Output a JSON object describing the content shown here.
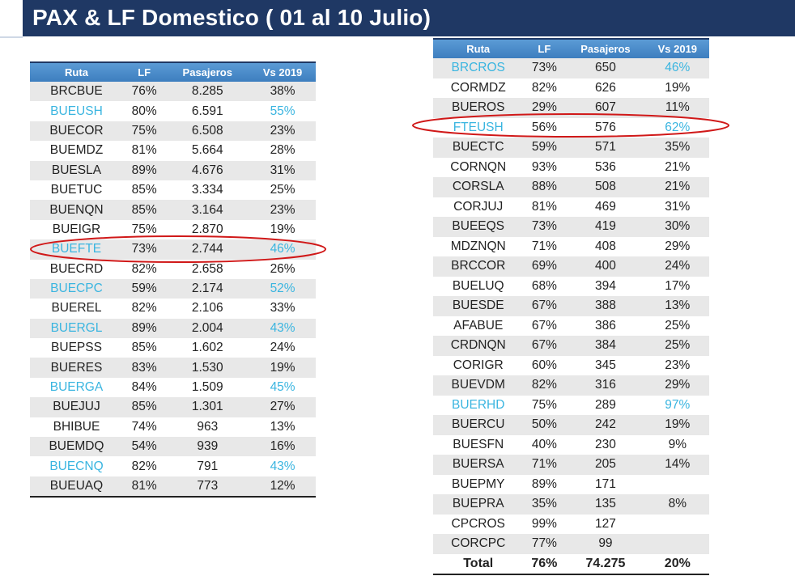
{
  "title": "PAX & LF  Domestico ( 01 al 10 Julio)",
  "colors": {
    "header": "#1f3864",
    "table_header": "#4a8cc9",
    "highlight_text": "#3ab5e0",
    "circle": "#d01818"
  },
  "columns": [
    "Ruta",
    "LF",
    "Pasajeros",
    "Vs 2019"
  ],
  "left_table": [
    [
      "BRCBUE",
      "76%",
      "8.285",
      "38%",
      false
    ],
    [
      "BUEUSH",
      "80%",
      "6.591",
      "55%",
      true
    ],
    [
      "BUECOR",
      "75%",
      "6.508",
      "23%",
      false
    ],
    [
      "BUEMDZ",
      "81%",
      "5.664",
      "28%",
      false
    ],
    [
      "BUESLA",
      "89%",
      "4.676",
      "31%",
      false
    ],
    [
      "BUETUC",
      "85%",
      "3.334",
      "25%",
      false
    ],
    [
      "BUENQN",
      "85%",
      "3.164",
      "23%",
      false
    ],
    [
      "BUEIGR",
      "75%",
      "2.870",
      "19%",
      false
    ],
    [
      "BUEFTE",
      "73%",
      "2.744",
      "46%",
      true
    ],
    [
      "BUECRD",
      "82%",
      "2.658",
      "26%",
      false
    ],
    [
      "BUECPC",
      "59%",
      "2.174",
      "52%",
      true
    ],
    [
      "BUEREL",
      "82%",
      "2.106",
      "33%",
      false
    ],
    [
      "BUERGL",
      "89%",
      "2.004",
      "43%",
      true
    ],
    [
      "BUEPSS",
      "85%",
      "1.602",
      "24%",
      false
    ],
    [
      "BUERES",
      "83%",
      "1.530",
      "19%",
      false
    ],
    [
      "BUERGA",
      "84%",
      "1.509",
      "45%",
      true
    ],
    [
      "BUEJUJ",
      "85%",
      "1.301",
      "27%",
      false
    ],
    [
      "BHIBUE",
      "74%",
      "963",
      "13%",
      false
    ],
    [
      "BUEMDQ",
      "54%",
      "939",
      "16%",
      false
    ],
    [
      "BUECNQ",
      "82%",
      "791",
      "43%",
      true
    ],
    [
      "BUEUAQ",
      "81%",
      "773",
      "12%",
      false
    ]
  ],
  "right_table": [
    [
      "BRCROS",
      "73%",
      "650",
      "46%",
      true
    ],
    [
      "CORMDZ",
      "82%",
      "626",
      "19%",
      false
    ],
    [
      "BUEROS",
      "29%",
      "607",
      "11%",
      false
    ],
    [
      "FTEUSH",
      "56%",
      "576",
      "62%",
      true
    ],
    [
      "BUECTC",
      "59%",
      "571",
      "35%",
      false
    ],
    [
      "CORNQN",
      "93%",
      "536",
      "21%",
      false
    ],
    [
      "CORSLA",
      "88%",
      "508",
      "21%",
      false
    ],
    [
      "CORJUJ",
      "81%",
      "469",
      "31%",
      false
    ],
    [
      "BUEEQS",
      "73%",
      "419",
      "30%",
      false
    ],
    [
      "MDZNQN",
      "71%",
      "408",
      "29%",
      false
    ],
    [
      "BRCCOR",
      "69%",
      "400",
      "24%",
      false
    ],
    [
      "BUELUQ",
      "68%",
      "394",
      "17%",
      false
    ],
    [
      "BUESDE",
      "67%",
      "388",
      "13%",
      false
    ],
    [
      "AFABUE",
      "67%",
      "386",
      "25%",
      false
    ],
    [
      "CRDNQN",
      "67%",
      "384",
      "25%",
      false
    ],
    [
      "CORIGR",
      "60%",
      "345",
      "23%",
      false
    ],
    [
      "BUEVDM",
      "82%",
      "316",
      "29%",
      false
    ],
    [
      "BUERHD",
      "75%",
      "289",
      "97%",
      true
    ],
    [
      "BUERCU",
      "50%",
      "242",
      "19%",
      false
    ],
    [
      "BUESFN",
      "40%",
      "230",
      "9%",
      false
    ],
    [
      "BUERSA",
      "71%",
      "205",
      "14%",
      false
    ],
    [
      "BUEPMY",
      "89%",
      "171",
      "",
      false
    ],
    [
      "BUEPRA",
      "35%",
      "135",
      "8%",
      false
    ],
    [
      "CPCROS",
      "99%",
      "127",
      "",
      false
    ],
    [
      "CORCPC",
      "77%",
      "99",
      "",
      false
    ]
  ],
  "total": [
    "Total",
    "76%",
    "74.275",
    "20%"
  ]
}
